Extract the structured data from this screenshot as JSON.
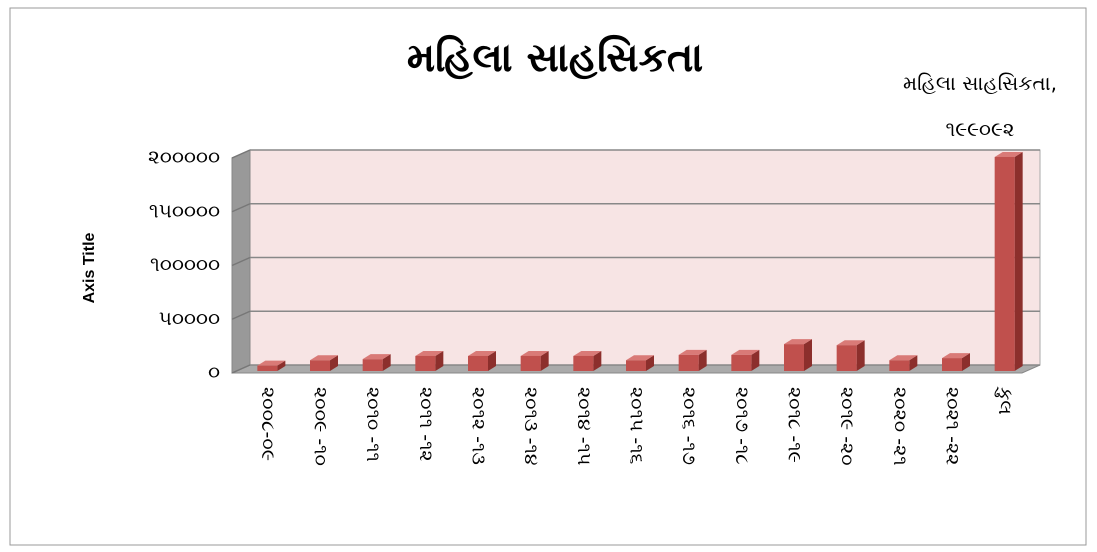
{
  "chart_data": {
    "type": "bar3d",
    "title": "મહિલા સાહસિકતા",
    "y_axis_label": "Axis Title",
    "series": [
      {
        "name": "મહિલા સાહસિકતા",
        "color": "#c0504d",
        "values": [
          5000,
          10000,
          11000,
          14000,
          14000,
          14000,
          14000,
          10000,
          15000,
          15000,
          25000,
          24000,
          10000,
          12000,
          199092
        ],
        "value_labels": [
          null,
          null,
          null,
          null,
          null,
          null,
          null,
          null,
          null,
          null,
          null,
          null,
          null,
          null,
          "મહિલા સાહસિકતા, ૧૯૯૦૯૨"
        ]
      }
    ],
    "categories": [
      "૨૦૦૮-૦૯",
      "૨૦૦૯ -૧૦",
      "૨૦૧૦ -૧૧",
      "૨૦૧૧ -૧૨",
      "૨૦૧૨ -૧૩",
      "૨૦૧૩ -૧૪",
      "૨૦૧૪ -૧૫",
      "૨૦૧૫ -૧૬",
      "૨૦૧૬ -૧૭",
      "૨૦૧૭ -૧૮",
      "૨૦૧૮ -૧૯",
      "૨૦૧૯ -૨૦",
      "૨૦૨૦ -૨૧",
      "૨૦૨૧ -૨૨",
      "કુલ"
    ],
    "ylim": [
      0,
      200000
    ],
    "yticks": [
      {
        "value": 0,
        "label": "૦"
      },
      {
        "value": 50000,
        "label": "૫૦૦૦૦"
      },
      {
        "value": 100000,
        "label": "૧૦૦૦૦૦"
      },
      {
        "value": 150000,
        "label": "૧૫૦૦૦૦"
      },
      {
        "value": 200000,
        "label": "૨૦૦૦૦૦"
      }
    ],
    "grid": true
  }
}
